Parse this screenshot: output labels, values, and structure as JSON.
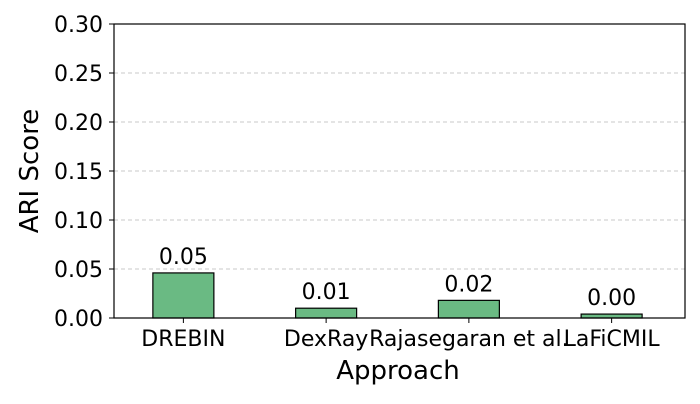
{
  "chart_data": {
    "type": "bar",
    "title": "",
    "xlabel": "Approach",
    "ylabel": "ARI Score",
    "categories": [
      "DREBIN",
      "DexRay",
      "Rajasegaran et al.",
      "LaFiCMIL"
    ],
    "values": [
      0.046,
      0.01,
      0.018,
      0.004
    ],
    "data_labels": [
      "0.05",
      "0.01",
      "0.02",
      "0.00"
    ],
    "ylim": [
      0,
      0.3
    ],
    "yticks": [
      0.0,
      0.05,
      0.1,
      0.15,
      0.2,
      0.25,
      0.3
    ],
    "ytick_labels": [
      "0.00",
      "0.05",
      "0.10",
      "0.15",
      "0.20",
      "0.25",
      "0.30"
    ],
    "grid": "y-dashed",
    "legend": "none",
    "colors": {
      "bar_fill": "#6aba83",
      "bar_edge": "#000000",
      "grid": "#c8c8c8",
      "axis": "#000000"
    }
  }
}
